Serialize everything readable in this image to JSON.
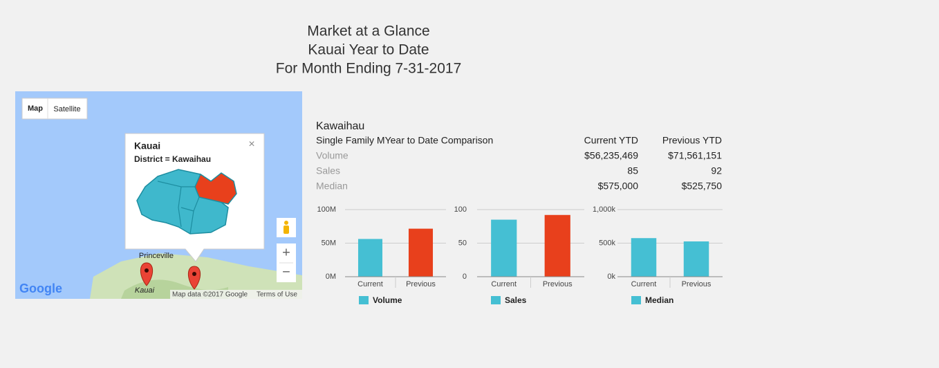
{
  "header": {
    "lines": [
      "Market at a Glance",
      "Kauai Year to Date",
      "For Month Ending 7-31-2017"
    ]
  },
  "map": {
    "buttons": [
      "Map",
      "Satellite"
    ],
    "popup_title": "Kauai",
    "popup_text": "District = Kawaihau",
    "close": "×",
    "places": [
      "Princeville",
      "Kauai"
    ],
    "zoom": [
      "+",
      "−"
    ],
    "logo": "Google",
    "attribution": "Map data ©2017 Google",
    "terms": "Terms of Use"
  },
  "table": {
    "title": "Kawaihau",
    "subtitle": "Single Family MYear to Date Comparison",
    "columns": [
      "Current YTD",
      "Previous YTD"
    ],
    "rows": [
      [
        "Volume",
        "$56,235,469",
        "$71,561,151"
      ],
      [
        "Sales",
        "85",
        "92"
      ],
      [
        "Median",
        "$575,000",
        "$525,750"
      ]
    ]
  },
  "chart_data": [
    {
      "type": "bar",
      "categories": [
        "Current",
        "Previous"
      ],
      "colors": [
        "#45bfd3",
        "#e8401c"
      ],
      "series": [
        {
          "name": "Volume",
          "color": "#45bfd3",
          "values": [
            56235469,
            71561151
          ]
        }
      ],
      "ylim": [
        0,
        100000000
      ],
      "yticks": [
        {
          "value": 0,
          "label": "0M"
        },
        {
          "value": 50000000,
          "label": "50M"
        },
        {
          "value": 100000000,
          "label": "100M"
        }
      ],
      "grid": true
    },
    {
      "type": "bar",
      "categories": [
        "Current",
        "Previous"
      ],
      "colors": [
        "#45bfd3",
        "#e8401c"
      ],
      "series": [
        {
          "name": "Sales",
          "color": "#45bfd3",
          "values": [
            85,
            92
          ]
        }
      ],
      "ylim": [
        0,
        100
      ],
      "yticks": [
        0,
        50,
        100
      ],
      "grid": true
    },
    {
      "type": "bar",
      "categories": [
        "Current",
        "Previous"
      ],
      "colors": [
        "#45bfd3",
        "#45bfd3"
      ],
      "series": [
        {
          "name": "Median",
          "color": "#45bfd3",
          "values": [
            575000,
            525750
          ]
        }
      ],
      "ylim": [
        0,
        1000000
      ],
      "yticks": [
        {
          "value": 0,
          "label": "0k"
        },
        {
          "value": 500000,
          "label": "500k"
        },
        {
          "value": 1000000,
          "label": "1,000k"
        }
      ],
      "grid": true
    }
  ]
}
